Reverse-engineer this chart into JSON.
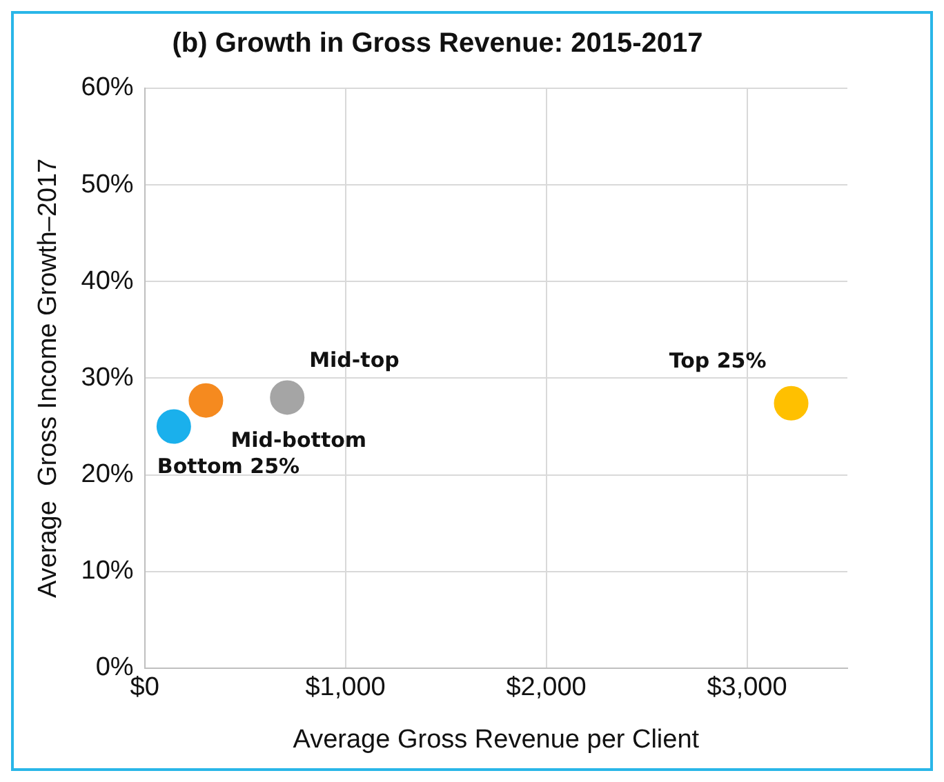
{
  "chart_data": {
    "type": "scatter",
    "title": "(b) Growth in Gross Revenue: 2015-2017",
    "xlabel": "Average Gross Revenue per Client",
    "ylabel": "Average  Gross Income Growth–2017",
    "series": [
      {
        "name": "Bottom 25%",
        "color": "#1ab0ec",
        "x": [
          145
        ],
        "values": [
          25.0
        ]
      },
      {
        "name": "Mid-bottom",
        "color": "#f58a1f",
        "x": [
          305
        ],
        "values": [
          27.7
        ]
      },
      {
        "name": "Mid-top",
        "color": "#a5a5a5",
        "x": [
          710
        ],
        "values": [
          28.0
        ]
      },
      {
        "name": "Top 25%",
        "color": "#ffc000",
        "x": [
          3220
        ],
        "values": [
          27.4
        ]
      }
    ],
    "xlim": [
      0,
      3500
    ],
    "xticks": [
      {
        "value": 0,
        "label": "$0"
      },
      {
        "value": 1000,
        "label": "$1,000"
      },
      {
        "value": 2000,
        "label": "$2,000"
      },
      {
        "value": 3000,
        "label": "$3,000"
      }
    ],
    "ylim": [
      0,
      60
    ],
    "yticks": [
      {
        "value": 0,
        "label": "0%"
      },
      {
        "value": 10,
        "label": "10%"
      },
      {
        "value": 20,
        "label": "20%"
      },
      {
        "value": 30,
        "label": "30%"
      },
      {
        "value": 40,
        "label": "40%"
      },
      {
        "value": 50,
        "label": "50%"
      },
      {
        "value": 60,
        "label": "60%"
      }
    ],
    "grid": true,
    "legend": false,
    "marker": "circle"
  }
}
